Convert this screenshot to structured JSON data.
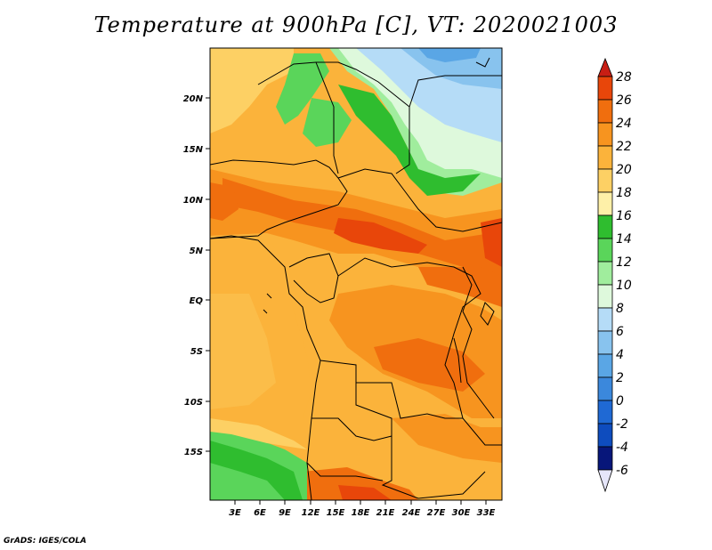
{
  "title": "Temperature at 900hPa [C], VT: 2020021003",
  "credit": "GrADS: IGES/COLA",
  "lat_ticks": [
    "20N",
    "15N",
    "10N",
    "5N",
    "EQ",
    "5S",
    "10S",
    "15S"
  ],
  "lon_ticks": [
    "3E",
    "6E",
    "9E",
    "12E",
    "15E",
    "18E",
    "21E",
    "24E",
    "27E",
    "30E",
    "33E"
  ],
  "colorbar": {
    "labels": [
      "28",
      "26",
      "24",
      "22",
      "20",
      "18",
      "16",
      "14",
      "12",
      "10",
      "8",
      "6",
      "4",
      "2",
      "0",
      "-2",
      "-4",
      "-6"
    ],
    "colors": {
      "above": "#c81e14",
      "c26": "#e8460a",
      "c24": "#f06e0e",
      "c22": "#f7941f",
      "c20": "#fbb33b",
      "c18": "#fdd064",
      "c16": "#fef0a8",
      "c14": "#2fbd2f",
      "c12": "#5ad55a",
      "c10": "#a0ed9d",
      "c8": "#def9dc",
      "c6": "#b5dcf7",
      "c4": "#88c3ee",
      "c2": "#5aa6e5",
      "c0": "#3b88dc",
      "cm2": "#1f69d4",
      "cm4": "#0e4cbe",
      "cm6": "#0a3096",
      "below": "#07167a",
      "bottom": "#e6e6fa"
    }
  }
}
